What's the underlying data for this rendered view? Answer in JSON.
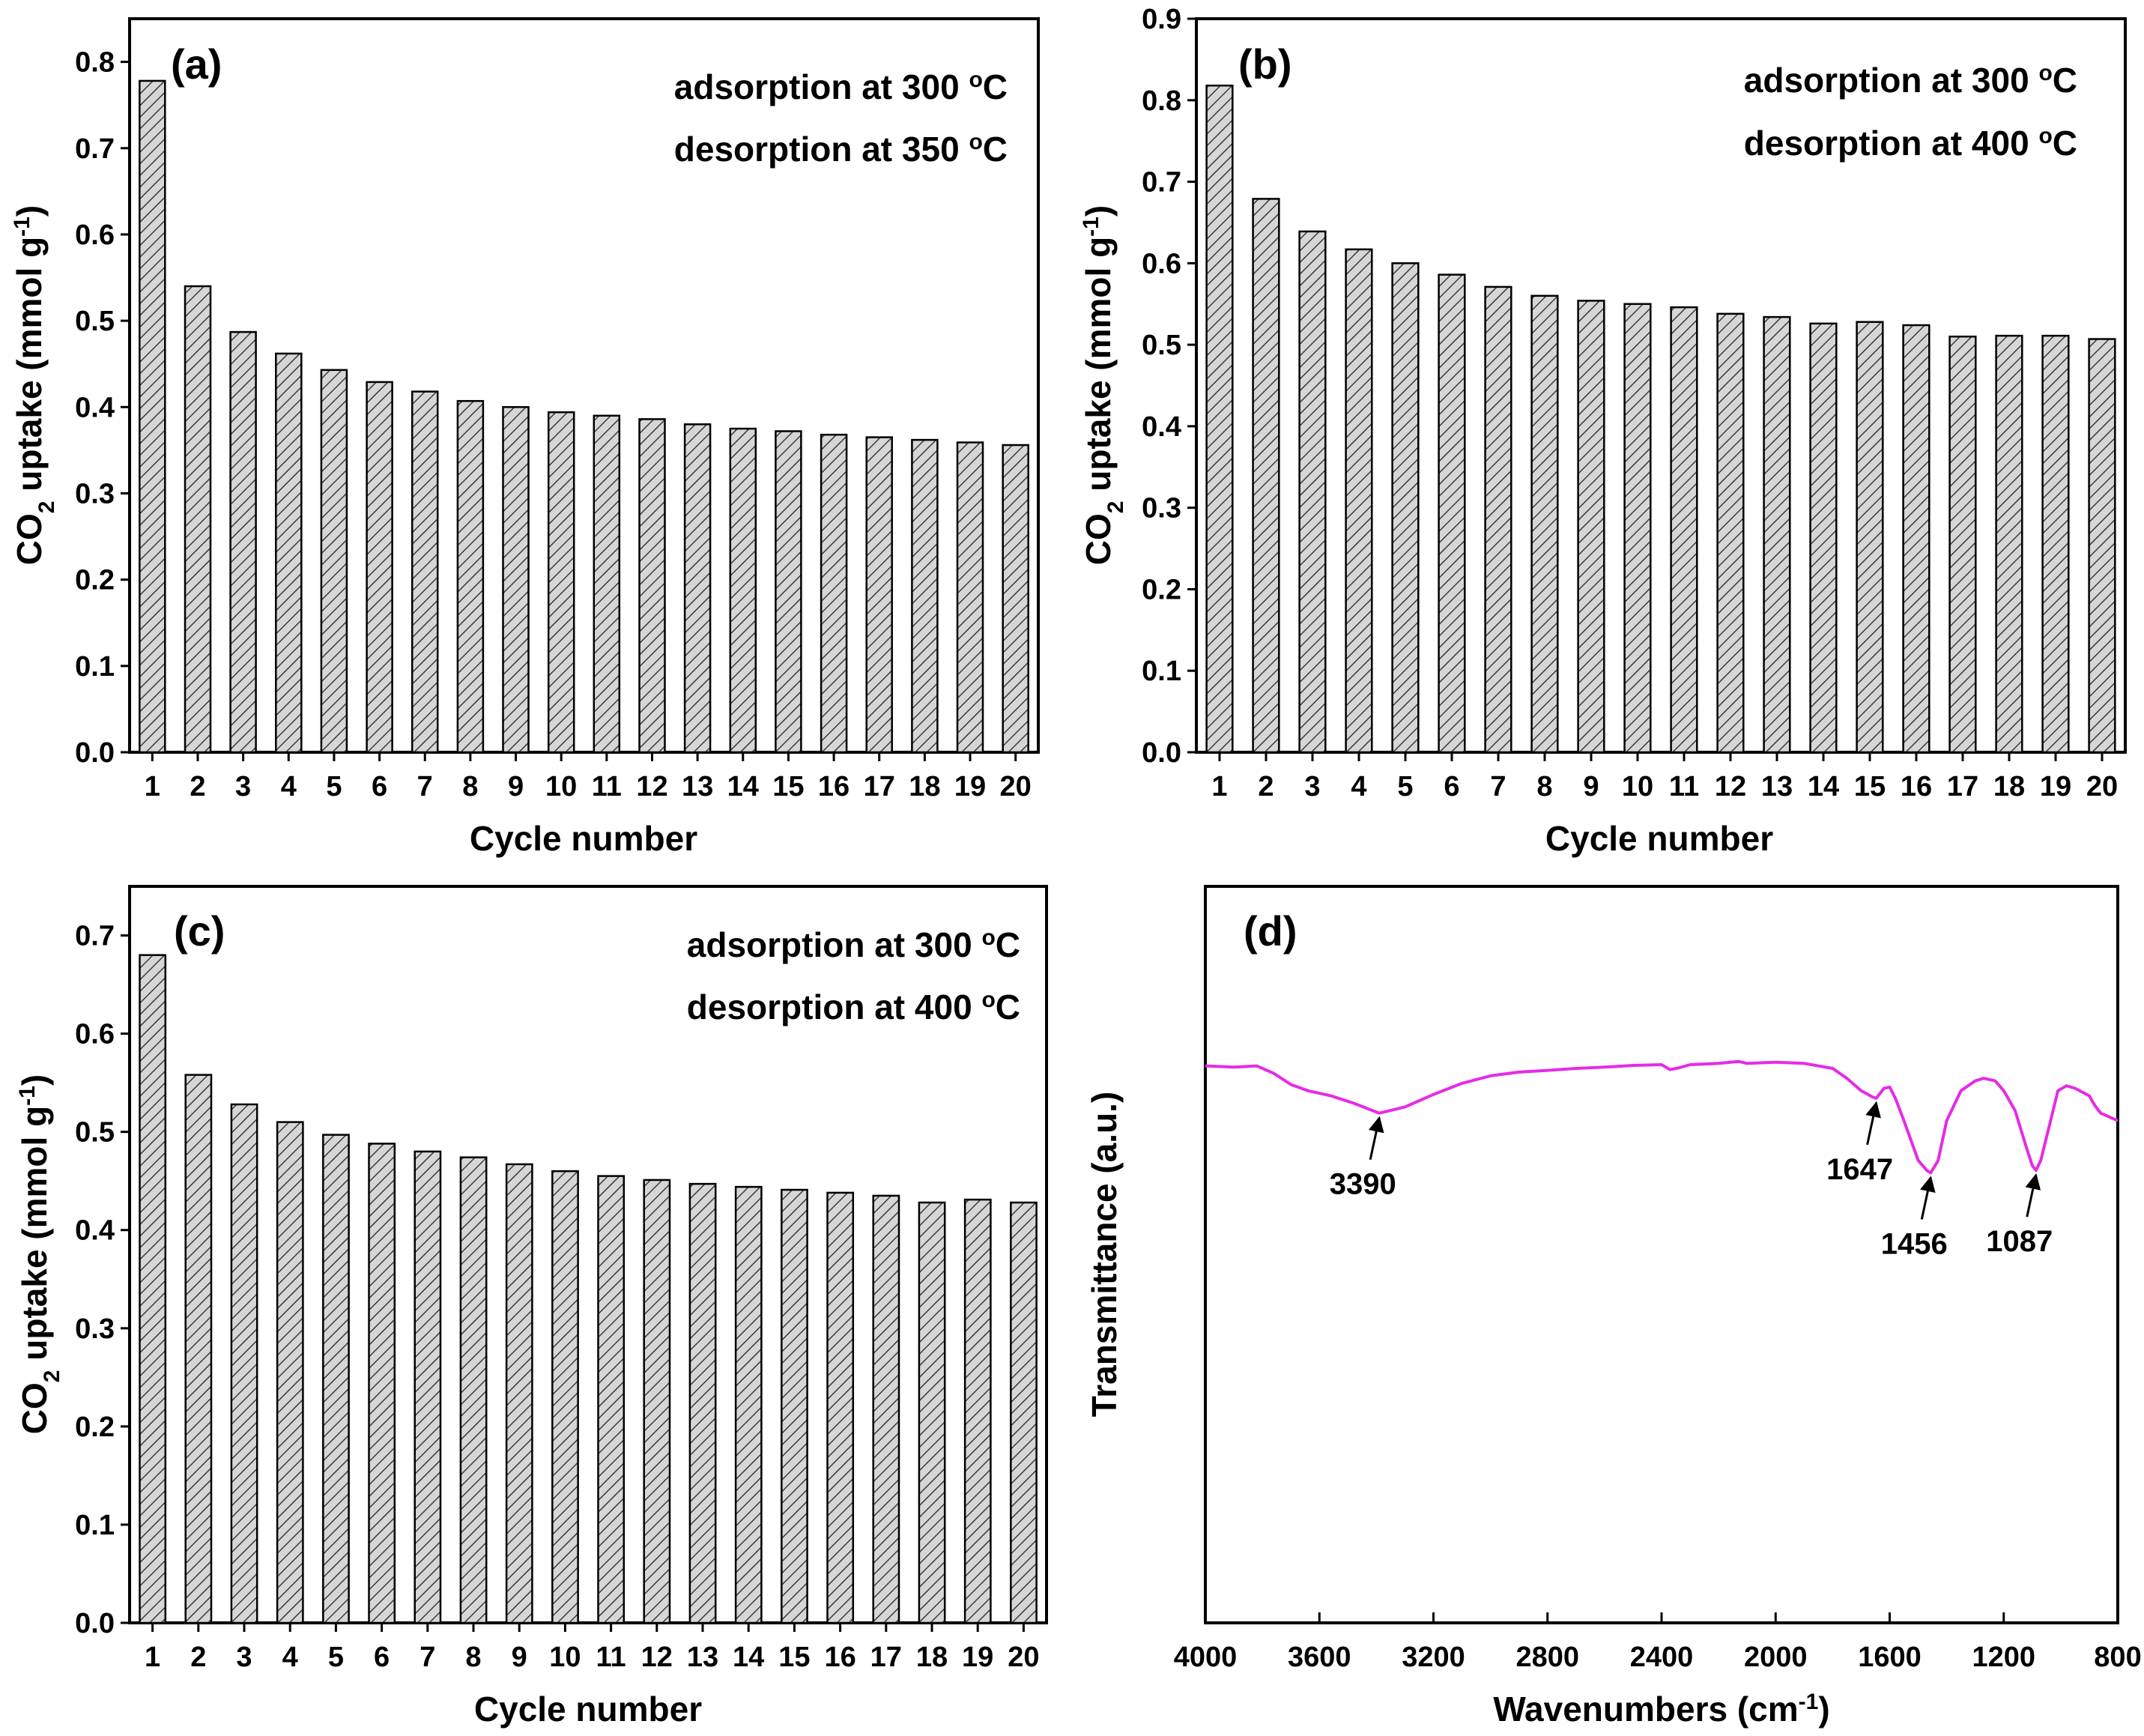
{
  "chart_data": [
    {
      "type": "bar",
      "panel_label": "(a)",
      "annotations": [
        "adsorption at 300 °C",
        "desorption at 350 °C"
      ],
      "xlabel": "Cycle number",
      "ylabel": "CO2 uptake (mmol g-1)",
      "categories": [
        "1",
        "2",
        "3",
        "4",
        "5",
        "6",
        "7",
        "8",
        "9",
        "10",
        "11",
        "12",
        "13",
        "14",
        "15",
        "16",
        "17",
        "18",
        "19",
        "20"
      ],
      "values": [
        0.778,
        0.54,
        0.487,
        0.462,
        0.443,
        0.429,
        0.418,
        0.407,
        0.4,
        0.394,
        0.39,
        0.386,
        0.38,
        0.375,
        0.372,
        0.368,
        0.365,
        0.362,
        0.359,
        0.356
      ],
      "ylim": [
        0,
        0.85
      ],
      "yticks": [
        "0.0",
        "0.1",
        "0.2",
        "0.3",
        "0.4",
        "0.5",
        "0.6",
        "0.7",
        "0.8"
      ],
      "bar_fill": "hatched gray",
      "grid": false
    },
    {
      "type": "bar",
      "panel_label": "(b)",
      "annotations": [
        "adsorption at 300 °C",
        "desorption at 400 °C"
      ],
      "xlabel": "Cycle number",
      "ylabel": "CO2 uptake (mmol g-1)",
      "categories": [
        "1",
        "2",
        "3",
        "4",
        "5",
        "6",
        "7",
        "8",
        "9",
        "10",
        "11",
        "12",
        "13",
        "14",
        "15",
        "16",
        "17",
        "18",
        "19",
        "20"
      ],
      "values": [
        0.818,
        0.679,
        0.639,
        0.617,
        0.6,
        0.586,
        0.571,
        0.56,
        0.554,
        0.55,
        0.546,
        0.538,
        0.534,
        0.526,
        0.528,
        0.524,
        0.51,
        0.511,
        0.511,
        0.507
      ],
      "ylim": [
        0,
        0.9
      ],
      "yticks": [
        "0.0",
        "0.1",
        "0.2",
        "0.3",
        "0.4",
        "0.5",
        "0.6",
        "0.7",
        "0.8",
        "0.9"
      ],
      "bar_fill": "hatched gray",
      "grid": false
    },
    {
      "type": "bar",
      "panel_label": "(c)",
      "annotations": [
        "adsorption at 300 °C",
        "desorption at 400 °C"
      ],
      "xlabel": "Cycle number",
      "ylabel": "CO2 uptake (mmol g-1)",
      "categories": [
        "1",
        "2",
        "3",
        "4",
        "5",
        "6",
        "7",
        "8",
        "9",
        "10",
        "11",
        "12",
        "13",
        "14",
        "15",
        "16",
        "17",
        "18",
        "19",
        "20"
      ],
      "values": [
        0.68,
        0.558,
        0.528,
        0.51,
        0.497,
        0.488,
        0.48,
        0.474,
        0.467,
        0.46,
        0.455,
        0.451,
        0.447,
        0.444,
        0.441,
        0.438,
        0.435,
        0.428,
        0.431,
        0.428
      ],
      "ylim": [
        0,
        0.75
      ],
      "yticks": [
        "0.0",
        "0.1",
        "0.2",
        "0.3",
        "0.4",
        "0.5",
        "0.6",
        "0.7"
      ],
      "bar_fill": "hatched gray",
      "grid": false
    },
    {
      "type": "line",
      "panel_label": "(d)",
      "xlabel": "Wavenumbers (cm-1)",
      "ylabel": "Transmittance (a.u.)",
      "xlim": [
        4000,
        800
      ],
      "xticks": [
        "4000",
        "3600",
        "3200",
        "2800",
        "2400",
        "2000",
        "1600",
        "1200",
        "800"
      ],
      "yticks": [],
      "line_color": "#e62be6",
      "series": [
        {
          "x": [
            4000,
            3900,
            3820,
            3760,
            3700,
            3640,
            3560,
            3480,
            3390,
            3300,
            3200,
            3100,
            3000,
            2900,
            2800,
            2700,
            2600,
            2500,
            2400,
            2370,
            2340,
            2300,
            2200,
            2130,
            2100,
            2000,
            1900,
            1800,
            1750,
            1700,
            1660,
            1647,
            1620,
            1600,
            1580,
            1550,
            1500,
            1470,
            1456,
            1430,
            1400,
            1350,
            1300,
            1270,
            1230,
            1200,
            1160,
            1120,
            1100,
            1087,
            1070,
            1040,
            1010,
            980,
            950,
            900,
            880,
            860,
            840,
            820,
            800
          ],
          "y": [
            0.98,
            0.975,
            0.98,
            0.95,
            0.905,
            0.88,
            0.86,
            0.83,
            0.79,
            0.815,
            0.865,
            0.91,
            0.94,
            0.955,
            0.962,
            0.97,
            0.975,
            0.982,
            0.985,
            0.965,
            0.972,
            0.985,
            0.99,
            0.998,
            0.99,
            0.995,
            0.99,
            0.97,
            0.93,
            0.88,
            0.855,
            0.85,
            0.89,
            0.895,
            0.85,
            0.76,
            0.6,
            0.56,
            0.55,
            0.6,
            0.76,
            0.88,
            0.92,
            0.93,
            0.92,
            0.88,
            0.8,
            0.65,
            0.58,
            0.56,
            0.6,
            0.74,
            0.88,
            0.9,
            0.89,
            0.86,
            0.82,
            0.79,
            0.78,
            0.77,
            0.76
          ]
        }
      ],
      "peak_labels": [
        "3390",
        "1647",
        "1456",
        "1087"
      ],
      "grid": false
    }
  ]
}
